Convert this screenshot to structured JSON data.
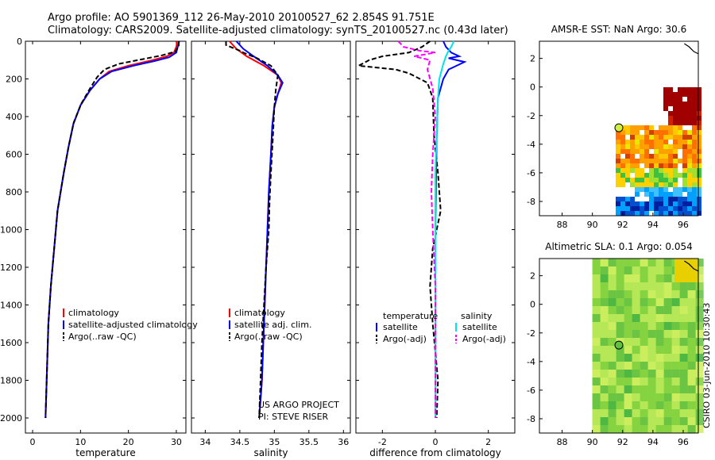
{
  "title_line1": "Argo profile: AO 5901369_112 26-May-2010 20100527_62 2.854S 91.751E",
  "title_line2": "Climatology: CARS2009. Satellite-adjusted climatology: synTS_20100527.nc (0.43d later)",
  "side_label": "CSIRO 03-Jun-2010 10:30:43",
  "chart_data": [
    {
      "type": "line",
      "xlabel": "temperature",
      "xlim": [
        -1.5,
        32
      ],
      "ylim": [
        0,
        2080
      ],
      "xticks": [
        "0",
        "10",
        "20",
        "30"
      ],
      "xtick_values": [
        0,
        10,
        20,
        30
      ],
      "yticks": [
        "0",
        "200",
        "400",
        "600",
        "800",
        "1000",
        "1200",
        "1400",
        "1600",
        "1800",
        "2000"
      ],
      "ytick_values": [
        0,
        200,
        400,
        600,
        800,
        1000,
        1200,
        1400,
        1600,
        1800,
        2000
      ],
      "y_reversed": true,
      "legend": [
        "climatology",
        "satellite-adjusted climatology",
        "Argo(..raw -QC)"
      ],
      "series": [
        {
          "name": "climatology",
          "color": "#ff0000",
          "dash": "",
          "x": [
            30.2,
            30,
            29.5,
            28,
            25,
            20,
            16,
            14,
            12,
            10,
            8.5,
            7.5,
            6.5,
            5.2,
            4.5,
            3.8,
            3.3,
            3,
            2.7
          ],
          "y": [
            0,
            30,
            60,
            80,
            100,
            130,
            160,
            200,
            260,
            340,
            440,
            560,
            700,
            900,
            1100,
            1300,
            1500,
            1750,
            2000
          ]
        },
        {
          "name": "satellite-adjusted climatology",
          "color": "#0000ff",
          "dash": "",
          "x": [
            30.6,
            30.3,
            30,
            28.5,
            25.5,
            21,
            16.5,
            14,
            12,
            10,
            8.5,
            7.5,
            6.5,
            5.2,
            4.5,
            3.8,
            3.3,
            3,
            2.7
          ],
          "y": [
            0,
            30,
            60,
            85,
            105,
            130,
            160,
            200,
            260,
            340,
            440,
            560,
            700,
            900,
            1100,
            1300,
            1500,
            1750,
            2000
          ]
        },
        {
          "name": "Argo(..raw -QC)",
          "color": "#000000",
          "dash": "6,3",
          "x": [
            30.5,
            30.5,
            29.8,
            27,
            23,
            18,
            15,
            13.5,
            12,
            10.2,
            8.6,
            7.5,
            6.5,
            5.2,
            4.5,
            3.8,
            3.3,
            3,
            2.7
          ],
          "y": [
            0,
            25,
            55,
            75,
            95,
            120,
            150,
            190,
            250,
            330,
            430,
            560,
            700,
            900,
            1100,
            1300,
            1500,
            1750,
            2000
          ]
        }
      ]
    },
    {
      "type": "line",
      "xlabel": "salinity",
      "xlim": [
        33.8,
        36.1
      ],
      "ylim": [
        0,
        2080
      ],
      "xticks": [
        "34",
        "34.5",
        "35",
        "35.5",
        "36"
      ],
      "xtick_values": [
        34,
        34.5,
        35,
        35.5,
        36
      ],
      "y_reversed": true,
      "legend": [
        "climatology",
        "satellite adj. clim.",
        "Argo(..raw -QC)"
      ],
      "annotation": [
        "US ARGO PROJECT",
        "PI: STEVE RISER"
      ],
      "series": [
        {
          "name": "climatology",
          "color": "#ff0000",
          "dash": "",
          "x": [
            34.35,
            34.45,
            34.6,
            34.85,
            35.05,
            35.1,
            35.05,
            35,
            34.97,
            34.95,
            34.92,
            34.9,
            34.88,
            34.86,
            34.84,
            34.82,
            34.8,
            34.78
          ],
          "y": [
            0,
            40,
            80,
            130,
            180,
            220,
            280,
            350,
            450,
            600,
            800,
            1000,
            1200,
            1400,
            1600,
            1800,
            1900,
            2000
          ]
        },
        {
          "name": "satellite adj. clim.",
          "color": "#0000ff",
          "dash": "",
          "x": [
            34.45,
            34.55,
            34.7,
            34.9,
            35.05,
            35.12,
            35.05,
            35,
            34.97,
            34.95,
            34.92,
            34.9,
            34.88,
            34.86,
            34.84,
            34.82,
            34.8,
            34.78
          ],
          "y": [
            0,
            40,
            80,
            130,
            180,
            220,
            280,
            350,
            450,
            600,
            800,
            1000,
            1200,
            1400,
            1600,
            1800,
            1900,
            2000
          ]
        },
        {
          "name": "Argo(..raw -QC)",
          "color": "#000000",
          "dash": "6,3",
          "x": [
            34.3,
            34.3,
            34.5,
            34.55,
            34.75,
            34.95,
            35.05,
            35.02,
            35,
            34.98,
            34.95,
            34.93,
            34.92,
            34.88,
            34.85,
            34.82,
            34.8,
            34.78
          ],
          "y": [
            0,
            20,
            50,
            60,
            90,
            130,
            180,
            260,
            350,
            500,
            700,
            850,
            1000,
            1200,
            1400,
            1600,
            1800,
            2000
          ]
        }
      ]
    },
    {
      "type": "line",
      "xlabel": "difference from climatology",
      "xlim": [
        -3,
        3
      ],
      "ylim": [
        0,
        2080
      ],
      "xticks": [
        "-2",
        "0",
        "2"
      ],
      "xtick_values": [
        -2,
        0,
        2
      ],
      "y_reversed": true,
      "legend_left_title": "temperature",
      "legend_right_title": "salinity",
      "legend_left": [
        "satellite",
        "Argo(-adj)"
      ],
      "legend_right": [
        "satellite",
        "Argo(-adj)"
      ],
      "series": [
        {
          "name": "temperature satellite",
          "color": "#0000ff",
          "dash": "",
          "x": [
            0.3,
            0.4,
            0.6,
            0.9,
            0.5,
            1.1,
            0.5,
            0.3,
            0.1,
            0.05,
            0.02,
            0,
            0,
            0,
            0,
            0,
            0,
            0
          ],
          "y": [
            0,
            30,
            60,
            80,
            90,
            110,
            150,
            200,
            300,
            500,
            800,
            1000,
            1200,
            1400,
            1600,
            1800,
            1900,
            2000
          ]
        },
        {
          "name": "temperature Argo(-adj)",
          "color": "#000000",
          "dash": "6,3",
          "x": [
            -0.2,
            -0.5,
            -1,
            -2,
            -2.5,
            -2.9,
            -1.5,
            -1,
            -0.3,
            -0.1,
            -0.05,
            0.1,
            0.2,
            -0.1,
            -0.2,
            -0.1,
            0.1,
            0.05
          ],
          "y": [
            0,
            30,
            60,
            80,
            100,
            130,
            150,
            170,
            220,
            300,
            500,
            700,
            900,
            1100,
            1300,
            1500,
            1800,
            2000
          ]
        },
        {
          "name": "salinity satellite",
          "color": "#00e5e5",
          "dash": "",
          "x": [
            0.7,
            0.6,
            0.5,
            0.4,
            0.3,
            0.15,
            0.1,
            0.05,
            0,
            0,
            0,
            0,
            0,
            0,
            0,
            0,
            0
          ],
          "y": [
            0,
            30,
            50,
            80,
            120,
            200,
            300,
            500,
            700,
            900,
            1100,
            1300,
            1500,
            1700,
            1800,
            1900,
            2000
          ]
        },
        {
          "name": "salinity Argo(-adj)",
          "color": "#ff00ff",
          "dash": "6,3",
          "x": [
            -1.4,
            -1.2,
            -0.6,
            0,
            -0.8,
            -0.2,
            -0.3,
            -0.1,
            0,
            -0.1,
            -0.15,
            -0.1,
            0,
            0,
            0,
            0
          ],
          "y": [
            0,
            30,
            50,
            60,
            80,
            100,
            150,
            250,
            400,
            600,
            800,
            1000,
            1300,
            1600,
            1800,
            2000
          ]
        }
      ]
    },
    {
      "type": "heatmap",
      "title": "AMSR-E SST: NaN Argo: 30.6",
      "xlim": [
        86.5,
        97
      ],
      "ylim": [
        -9,
        3.2
      ],
      "xticks": [
        "88",
        "90",
        "92",
        "94",
        "96"
      ],
      "xtick_values": [
        88,
        90,
        92,
        94,
        96
      ],
      "yticks": [
        "2",
        "0",
        "-2",
        "-4",
        "-6",
        "-8"
      ],
      "ytick_values": [
        2,
        0,
        -2,
        -4,
        -6,
        -8
      ],
      "argo_point": [
        91.75,
        -2.85
      ]
    },
    {
      "type": "heatmap",
      "title": "Altimetric SLA: 0.1 Argo: 0.054",
      "xlim": [
        86.5,
        97
      ],
      "ylim": [
        -9,
        3.2
      ],
      "xticks": [
        "88",
        "90",
        "92",
        "94",
        "96"
      ],
      "xtick_values": [
        88,
        90,
        92,
        94,
        96
      ],
      "yticks": [
        "2",
        "0",
        "-2",
        "-4",
        "-6",
        "-8"
      ],
      "ytick_values": [
        2,
        0,
        -2,
        -4,
        -6,
        -8
      ],
      "argo_point": [
        91.75,
        -2.85
      ]
    }
  ]
}
